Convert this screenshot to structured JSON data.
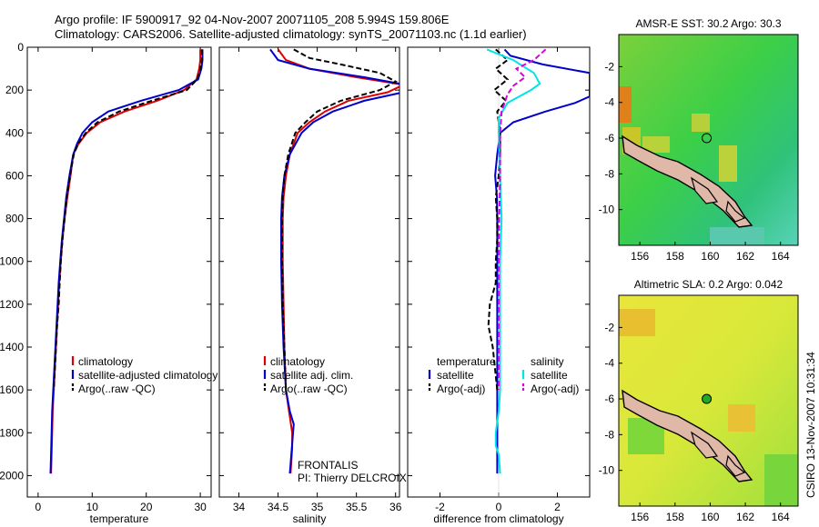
{
  "title": {
    "line1": "Argo profile: IF 5900917_92 04-Nov-2007 20071105_208 5.994S 159.806E",
    "line2": "Climatology: CARS2006. Satellite-adjusted climatology: synTS_20071103.nc (1.1d earlier)"
  },
  "stamp": "CSIRO 13-Nov-2007 10:31:34",
  "colors": {
    "climatology": "#dd0000",
    "satellite": "#0000cc",
    "argo": "#000000",
    "sal_satellite": "#00e5e5",
    "sal_argo": "#dd00dd"
  },
  "chart_data": [
    {
      "type": "line",
      "xlabel": "temperature",
      "ylabel": "",
      "xlim": [
        -2,
        32
      ],
      "ylim": [
        2100,
        0
      ],
      "xticks": [
        0,
        10,
        20,
        30
      ],
      "yticks": [
        0,
        200,
        400,
        600,
        800,
        1000,
        1200,
        1400,
        1600,
        1800,
        2000
      ],
      "legend": [
        "climatology",
        "satellite-adjusted climatology",
        "Argo(..raw -QC)"
      ],
      "series": [
        {
          "name": "climatology",
          "style": "solid",
          "color": "climatology",
          "points": [
            [
              30,
              10
            ],
            [
              30,
              60
            ],
            [
              29.8,
              100
            ],
            [
              29.3,
              150
            ],
            [
              27,
              200
            ],
            [
              22,
              250
            ],
            [
              16,
              300
            ],
            [
              11.5,
              350
            ],
            [
              9,
              400
            ],
            [
              7.5,
              450
            ],
            [
              6.5,
              500
            ],
            [
              6,
              600
            ],
            [
              5.4,
              700
            ],
            [
              4.9,
              800
            ],
            [
              4.5,
              900
            ],
            [
              4.2,
              1000
            ],
            [
              3.9,
              1100
            ],
            [
              3.7,
              1200
            ],
            [
              3.5,
              1300
            ],
            [
              3.3,
              1400
            ],
            [
              3.1,
              1500
            ],
            [
              2.9,
              1600
            ],
            [
              2.7,
              1700
            ],
            [
              2.6,
              1800
            ],
            [
              2.5,
              1900
            ],
            [
              2.4,
              1990
            ]
          ]
        },
        {
          "name": "satellite-adjusted climatology",
          "style": "solid",
          "color": "satellite",
          "points": [
            [
              30.4,
              10
            ],
            [
              30.4,
              60
            ],
            [
              30.2,
              100
            ],
            [
              29.6,
              150
            ],
            [
              26,
              200
            ],
            [
              19,
              250
            ],
            [
              13,
              300
            ],
            [
              10,
              350
            ],
            [
              8.2,
              400
            ],
            [
              7.2,
              450
            ],
            [
              6.5,
              500
            ],
            [
              5.8,
              600
            ],
            [
              5.2,
              700
            ],
            [
              4.8,
              800
            ],
            [
              4.4,
              900
            ],
            [
              4.1,
              1000
            ],
            [
              3.8,
              1100
            ],
            [
              3.6,
              1200
            ],
            [
              3.4,
              1300
            ],
            [
              3.2,
              1400
            ],
            [
              3,
              1500
            ],
            [
              2.8,
              1600
            ],
            [
              2.6,
              1700
            ],
            [
              2.5,
              1800
            ],
            [
              2.4,
              1900
            ],
            [
              2.3,
              1990
            ]
          ]
        },
        {
          "name": "Argo(..raw -QC)",
          "style": "dashed",
          "color": "argo",
          "points": [
            [
              30.3,
              10
            ],
            [
              30.3,
              60
            ],
            [
              30,
              100
            ],
            [
              29.4,
              150
            ],
            [
              27.5,
              200
            ],
            [
              21,
              250
            ],
            [
              15,
              300
            ],
            [
              11,
              350
            ],
            [
              8.8,
              400
            ],
            [
              7.4,
              450
            ],
            [
              6.6,
              500
            ],
            [
              5.9,
              600
            ],
            [
              5.3,
              700
            ],
            [
              4.9,
              800
            ],
            [
              4.5,
              900
            ],
            [
              4.2,
              1000
            ],
            [
              4,
              1100
            ],
            [
              3.8,
              1200
            ],
            [
              3.5,
              1300
            ],
            [
              3.3,
              1400
            ],
            [
              3.1,
              1500
            ],
            [
              2.9,
              1600
            ]
          ]
        }
      ]
    },
    {
      "type": "line",
      "xlabel": "salinity",
      "ylabel": "",
      "xlim": [
        33.75,
        36.05
      ],
      "ylim": [
        2100,
        0
      ],
      "xticks": [
        34,
        34.5,
        35,
        35.5,
        36
      ],
      "xticklabels": [
        "34",
        "34.5",
        "35",
        "35.5",
        "36"
      ],
      "legend": [
        "climatology",
        "satellite adj. clim.",
        "Argo(..raw -QC)"
      ],
      "annotation": [
        "FRONTALIS",
        "PI: Thierry DELCROIX"
      ],
      "series": [
        {
          "name": "climatology",
          "style": "solid",
          "color": "climatology",
          "points": [
            [
              34.5,
              10
            ],
            [
              34.6,
              60
            ],
            [
              34.9,
              100
            ],
            [
              35.5,
              140
            ],
            [
              36.1,
              175
            ],
            [
              35.9,
              210
            ],
            [
              35.4,
              250
            ],
            [
              35.1,
              300
            ],
            [
              34.9,
              350
            ],
            [
              34.75,
              400
            ],
            [
              34.65,
              500
            ],
            [
              34.6,
              600
            ],
            [
              34.57,
              700
            ],
            [
              34.56,
              800
            ],
            [
              34.56,
              1000
            ],
            [
              34.57,
              1200
            ],
            [
              34.58,
              1400
            ],
            [
              34.6,
              1600
            ],
            [
              34.64,
              1700
            ],
            [
              34.68,
              1800
            ],
            [
              34.68,
              1870
            ],
            [
              34.66,
              1990
            ]
          ]
        },
        {
          "name": "satellite adj. clim.",
          "style": "solid",
          "color": "satellite",
          "points": [
            [
              34.4,
              10
            ],
            [
              34.5,
              60
            ],
            [
              34.9,
              100
            ],
            [
              35.6,
              140
            ],
            [
              36.2,
              180
            ],
            [
              36.1,
              210
            ],
            [
              35.6,
              250
            ],
            [
              35.2,
              300
            ],
            [
              34.95,
              350
            ],
            [
              34.8,
              400
            ],
            [
              34.65,
              500
            ],
            [
              34.58,
              600
            ],
            [
              34.55,
              700
            ],
            [
              34.54,
              800
            ],
            [
              34.54,
              1000
            ],
            [
              34.55,
              1200
            ],
            [
              34.57,
              1400
            ],
            [
              34.6,
              1600
            ],
            [
              34.65,
              1700
            ],
            [
              34.7,
              1760
            ],
            [
              34.68,
              1850
            ],
            [
              34.65,
              1990
            ]
          ]
        },
        {
          "name": "Argo(..raw -QC)",
          "style": "dashed",
          "color": "argo",
          "points": [
            [
              34.7,
              10
            ],
            [
              34.9,
              50
            ],
            [
              35.3,
              80
            ],
            [
              35.8,
              120
            ],
            [
              36,
              160
            ],
            [
              35.8,
              200
            ],
            [
              35.3,
              250
            ],
            [
              35,
              300
            ],
            [
              34.85,
              350
            ],
            [
              34.72,
              400
            ],
            [
              34.63,
              500
            ],
            [
              34.58,
              600
            ],
            [
              34.56,
              700
            ],
            [
              34.55,
              800
            ],
            [
              34.55,
              1000
            ],
            [
              34.56,
              1200
            ],
            [
              34.58,
              1400
            ],
            [
              34.6,
              1600
            ]
          ]
        }
      ]
    },
    {
      "type": "line",
      "xlabel": "difference from climatology",
      "ylabel": "",
      "xlim": [
        -3.1,
        3.1
      ],
      "ylim": [
        2100,
        0
      ],
      "xticks": [
        -2,
        0,
        2
      ],
      "legend_temperature": {
        "heading": "temperature",
        "items": [
          "satellite",
          "Argo(-adj)"
        ]
      },
      "legend_salinity": {
        "heading": "salinity",
        "items": [
          "satellite",
          "Argo(-adj)"
        ]
      },
      "series": [
        {
          "name": "satellite",
          "group": "temperature",
          "style": "solid",
          "color": "satellite",
          "points": [
            [
              0.2,
              10
            ],
            [
              0.4,
              40
            ],
            [
              1.5,
              80
            ],
            [
              3.1,
              120
            ],
            [
              3.1,
              230
            ],
            [
              2.6,
              260
            ],
            [
              1.6,
              300
            ],
            [
              0.5,
              350
            ],
            [
              0.05,
              400
            ],
            [
              -0.05,
              500
            ],
            [
              -0.12,
              600
            ],
            [
              -0.06,
              700
            ],
            [
              -0.05,
              800
            ],
            [
              -0.05,
              1000
            ],
            [
              -0.05,
              1200
            ],
            [
              -0.05,
              1400
            ],
            [
              -0.05,
              1600
            ],
            [
              -0.05,
              1800
            ],
            [
              -0.05,
              1990
            ]
          ]
        },
        {
          "name": "Argo(-adj)",
          "group": "temperature",
          "style": "dashed",
          "color": "argo",
          "points": [
            [
              -0.1,
              10
            ],
            [
              0.3,
              60
            ],
            [
              -0.1,
              100
            ],
            [
              0.3,
              150
            ],
            [
              -0.15,
              200
            ],
            [
              0.25,
              250
            ],
            [
              -0.05,
              300
            ],
            [
              0.05,
              400
            ],
            [
              0.05,
              500
            ],
            [
              0,
              600
            ],
            [
              -0.1,
              700
            ],
            [
              -0.05,
              800
            ],
            [
              -0.05,
              900
            ],
            [
              -0.1,
              1000
            ],
            [
              -0.1,
              1100
            ],
            [
              -0.3,
              1200
            ],
            [
              -0.35,
              1300
            ],
            [
              -0.2,
              1400
            ],
            [
              -0.05,
              1600
            ]
          ]
        },
        {
          "name": "satellite",
          "group": "salinity",
          "style": "solid",
          "color": "sal_satellite",
          "points": [
            [
              -0.4,
              10
            ],
            [
              0.5,
              60
            ],
            [
              1.2,
              120
            ],
            [
              1.4,
              170
            ],
            [
              1.1,
              200
            ],
            [
              0.3,
              260
            ],
            [
              0,
              330
            ],
            [
              0,
              400
            ],
            [
              0.05,
              600
            ],
            [
              0.1,
              800
            ],
            [
              0.05,
              1000
            ],
            [
              0.05,
              1200
            ],
            [
              0.05,
              1400
            ],
            [
              0.05,
              1600
            ],
            [
              0,
              1700
            ],
            [
              -0.1,
              1800
            ],
            [
              -0.1,
              1860
            ],
            [
              0,
              1900
            ],
            [
              0.05,
              1990
            ]
          ]
        },
        {
          "name": "Argo(-adj)",
          "group": "salinity",
          "style": "dashed",
          "color": "sal_argo",
          "points": [
            [
              1.6,
              10
            ],
            [
              1.2,
              60
            ],
            [
              0.6,
              100
            ],
            [
              0.9,
              140
            ],
            [
              0.5,
              180
            ],
            [
              0.3,
              220
            ],
            [
              0.1,
              300
            ],
            [
              0.05,
              400
            ],
            [
              0.05,
              600
            ],
            [
              0.02,
              800
            ],
            [
              0,
              1000
            ],
            [
              0,
              1200
            ],
            [
              0,
              1400
            ],
            [
              0,
              1600
            ]
          ]
        }
      ]
    },
    {
      "type": "heatmap",
      "title": "AMSR-E SST: 30.2  Argo: 30.3",
      "xlim": [
        154.8,
        165
      ],
      "ylim": [
        -12,
        -0.2
      ],
      "xticks": [
        156,
        158,
        160,
        162,
        164
      ],
      "yticks": [
        -2,
        -4,
        -6,
        -8,
        -10
      ],
      "marker": {
        "lon": 159.8,
        "lat": -6.0
      }
    },
    {
      "type": "heatmap",
      "title": "Altimetric SLA: 0.2  Argo: 0.042",
      "xlim": [
        154.8,
        165
      ],
      "ylim": [
        -12,
        -0.2
      ],
      "xticks": [
        156,
        158,
        160,
        162,
        164
      ],
      "yticks": [
        -2,
        -4,
        -6,
        -8,
        -10
      ],
      "marker": {
        "lon": 159.8,
        "lat": -6.0
      }
    }
  ]
}
